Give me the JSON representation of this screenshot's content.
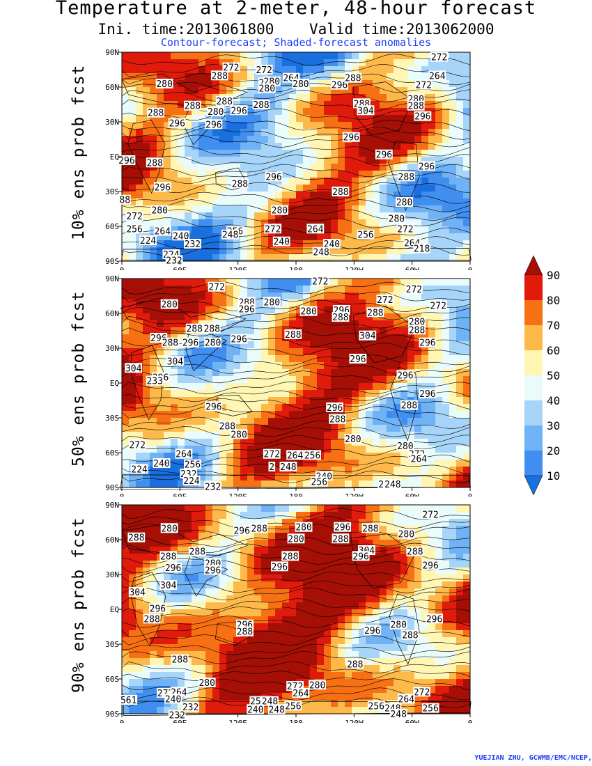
{
  "header": {
    "title": "Temperature at 2-meter, 48-hour forecast",
    "init_label": "Ini. time:2013061800",
    "valid_label": "Valid time:2013062000",
    "subtitle": "Contour-forecast; Shaded-forecast anomalies"
  },
  "axes": {
    "lat_ticks": [
      "90N",
      "60N",
      "30N",
      "EQ",
      "30S",
      "60S",
      "90S"
    ],
    "lon_ticks": [
      "0",
      "60E",
      "120E",
      "180",
      "120W",
      "60W",
      "0"
    ]
  },
  "panels": [
    {
      "label": "10% ens prob fcst",
      "contour_labels": [
        {
          "text": "272",
          "lon": -32,
          "lat": 86
        },
        {
          "text": "272",
          "lon": 147,
          "lat": 75
        },
        {
          "text": "272",
          "lon": 113,
          "lat": 77
        },
        {
          "text": "264",
          "lon": 175,
          "lat": 68
        },
        {
          "text": "288",
          "lon": 101,
          "lat": 70
        },
        {
          "text": "296",
          "lon": 150,
          "lat": 64
        },
        {
          "text": "280",
          "lon": 155,
          "lat": 65
        },
        {
          "text": "280",
          "lon": 150,
          "lat": 59
        },
        {
          "text": "280",
          "lon": 185,
          "lat": 63
        },
        {
          "text": "296",
          "lon": 225,
          "lat": 62
        },
        {
          "text": "288",
          "lon": 239,
          "lat": 68
        },
        {
          "text": "272",
          "lon": 312,
          "lat": 62
        },
        {
          "text": "264",
          "lon": 326,
          "lat": 70
        },
        {
          "text": "280",
          "lon": 44,
          "lat": 63
        },
        {
          "text": "288",
          "lon": 106,
          "lat": 48
        },
        {
          "text": "288",
          "lon": 144,
          "lat": 45
        },
        {
          "text": "288",
          "lon": 73,
          "lat": 44
        },
        {
          "text": "280",
          "lon": 97,
          "lat": 39
        },
        {
          "text": "296",
          "lon": 121,
          "lat": 40
        },
        {
          "text": "288",
          "lon": 35,
          "lat": 38
        },
        {
          "text": "296",
          "lon": 57,
          "lat": 29
        },
        {
          "text": "296",
          "lon": 95,
          "lat": 28
        },
        {
          "text": "288",
          "lon": 248,
          "lat": 46
        },
        {
          "text": "304",
          "lon": 252,
          "lat": 40
        },
        {
          "text": "280",
          "lon": 304,
          "lat": 50
        },
        {
          "text": "288",
          "lon": 304,
          "lat": 44
        },
        {
          "text": "296",
          "lon": 311,
          "lat": 35
        },
        {
          "text": "296",
          "lon": 237,
          "lat": 17
        },
        {
          "text": "296",
          "lon": 271,
          "lat": 2
        },
        {
          "text": "296",
          "lon": 5,
          "lat": -3
        },
        {
          "text": "288",
          "lon": 34,
          "lat": -5
        },
        {
          "text": "296",
          "lon": 315,
          "lat": -8
        },
        {
          "text": "288",
          "lon": 294,
          "lat": -17
        },
        {
          "text": "296",
          "lon": 157,
          "lat": -17
        },
        {
          "text": "288",
          "lon": 122,
          "lat": -23
        },
        {
          "text": "296",
          "lon": 42,
          "lat": -26
        },
        {
          "text": "288",
          "lon": 226,
          "lat": -30
        },
        {
          "text": "88",
          "lon": 3,
          "lat": -37
        },
        {
          "text": "280",
          "lon": 292,
          "lat": -39
        },
        {
          "text": "280",
          "lon": 163,
          "lat": -46
        },
        {
          "text": "280",
          "lon": 39,
          "lat": -46
        },
        {
          "text": "280",
          "lon": 284,
          "lat": -53
        },
        {
          "text": "272",
          "lon": 13,
          "lat": -51
        },
        {
          "text": "256",
          "lon": 13,
          "lat": -62
        },
        {
          "text": "264",
          "lon": 42,
          "lat": -64
        },
        {
          "text": "256",
          "lon": 117,
          "lat": -64
        },
        {
          "text": "272",
          "lon": 156,
          "lat": -62
        },
        {
          "text": "264",
          "lon": 200,
          "lat": -62
        },
        {
          "text": "248",
          "lon": 112,
          "lat": -67
        },
        {
          "text": "240",
          "lon": 61,
          "lat": -68
        },
        {
          "text": "256",
          "lon": 252,
          "lat": -67
        },
        {
          "text": "272",
          "lon": 293,
          "lat": -62
        },
        {
          "text": "224",
          "lon": 27,
          "lat": -72
        },
        {
          "text": "232",
          "lon": 73,
          "lat": -75
        },
        {
          "text": "240",
          "lon": 165,
          "lat": -73
        },
        {
          "text": "240",
          "lon": 217,
          "lat": -75
        },
        {
          "text": "264",
          "lon": 300,
          "lat": -74
        },
        {
          "text": "218",
          "lon": 310,
          "lat": -79
        },
        {
          "text": "248",
          "lon": 206,
          "lat": -82
        },
        {
          "text": "224",
          "lon": 51,
          "lat": -84
        },
        {
          "text": "232",
          "lon": 54,
          "lat": -89
        }
      ]
    },
    {
      "label": "50% ens prob fcst",
      "contour_labels": [
        {
          "text": "272",
          "lon": 205,
          "lat": 88
        },
        {
          "text": "272",
          "lon": 302,
          "lat": 81
        },
        {
          "text": "272",
          "lon": 98,
          "lat": 83
        },
        {
          "text": "272",
          "lon": 272,
          "lat": 72
        },
        {
          "text": "272",
          "lon": 327,
          "lat": 67
        },
        {
          "text": "288",
          "lon": 129,
          "lat": 70
        },
        {
          "text": "280",
          "lon": 155,
          "lat": 70
        },
        {
          "text": "296",
          "lon": 129,
          "lat": 64
        },
        {
          "text": "280",
          "lon": 49,
          "lat": 68
        },
        {
          "text": "280",
          "lon": 193,
          "lat": 62
        },
        {
          "text": "296",
          "lon": 227,
          "lat": 63
        },
        {
          "text": "288",
          "lon": 226,
          "lat": 57
        },
        {
          "text": "288",
          "lon": 262,
          "lat": 61
        },
        {
          "text": "280",
          "lon": 305,
          "lat": 53
        },
        {
          "text": "288",
          "lon": 305,
          "lat": 46
        },
        {
          "text": "288",
          "lon": 75,
          "lat": 47
        },
        {
          "text": "288",
          "lon": 93,
          "lat": 47
        },
        {
          "text": "296",
          "lon": 38,
          "lat": 39
        },
        {
          "text": "288",
          "lon": 50,
          "lat": 35
        },
        {
          "text": "296",
          "lon": 71,
          "lat": 35
        },
        {
          "text": "280",
          "lon": 94,
          "lat": 35
        },
        {
          "text": "296",
          "lon": 121,
          "lat": 38
        },
        {
          "text": "288",
          "lon": 177,
          "lat": 42
        },
        {
          "text": "304",
          "lon": 254,
          "lat": 41
        },
        {
          "text": "296",
          "lon": 316,
          "lat": 35
        },
        {
          "text": "304",
          "lon": 12,
          "lat": 13
        },
        {
          "text": "304",
          "lon": 55,
          "lat": 19
        },
        {
          "text": "296",
          "lon": 244,
          "lat": 21
        },
        {
          "text": "296",
          "lon": 40,
          "lat": 5
        },
        {
          "text": "233",
          "lon": 34,
          "lat": 2
        },
        {
          "text": "296",
          "lon": 293,
          "lat": 7
        },
        {
          "text": "296",
          "lon": 316,
          "lat": -9
        },
        {
          "text": "288",
          "lon": 297,
          "lat": -19
        },
        {
          "text": "296",
          "lon": 95,
          "lat": -20
        },
        {
          "text": "296",
          "lon": 220,
          "lat": -21
        },
        {
          "text": "288",
          "lon": 223,
          "lat": -31
        },
        {
          "text": "288",
          "lon": 109,
          "lat": -37
        },
        {
          "text": "280",
          "lon": 121,
          "lat": -44
        },
        {
          "text": "280",
          "lon": 239,
          "lat": -48
        },
        {
          "text": "280",
          "lon": 293,
          "lat": -54
        },
        {
          "text": "272",
          "lon": 16,
          "lat": -53
        },
        {
          "text": "272",
          "lon": 155,
          "lat": -61
        },
        {
          "text": "264",
          "lon": 179,
          "lat": -62
        },
        {
          "text": "256",
          "lon": 197,
          "lat": -62
        },
        {
          "text": "272",
          "lon": 305,
          "lat": -61
        },
        {
          "text": "264",
          "lon": 307,
          "lat": -65
        },
        {
          "text": "264",
          "lon": 64,
          "lat": -61
        },
        {
          "text": "240",
          "lon": 41,
          "lat": -69
        },
        {
          "text": "256",
          "lon": 73,
          "lat": -70
        },
        {
          "text": "248",
          "lon": 172,
          "lat": -72
        },
        {
          "text": "2",
          "lon": 155,
          "lat": -72
        },
        {
          "text": "224",
          "lon": 18,
          "lat": -74
        },
        {
          "text": "232",
          "lon": 69,
          "lat": -78
        },
        {
          "text": "224",
          "lon": 72,
          "lat": -84
        },
        {
          "text": "232",
          "lon": 94,
          "lat": -89
        },
        {
          "text": "240",
          "lon": 209,
          "lat": -80
        },
        {
          "text": "256",
          "lon": 204,
          "lat": -85
        },
        {
          "text": "2",
          "lon": 268,
          "lat": -87
        },
        {
          "text": "248",
          "lon": 280,
          "lat": -87
        }
      ]
    },
    {
      "label": "90% ens prob fcst",
      "contour_labels": [
        {
          "text": "272",
          "lon": 319,
          "lat": 82
        },
        {
          "text": "296",
          "lon": 124,
          "lat": 68
        },
        {
          "text": "288",
          "lon": 142,
          "lat": 70
        },
        {
          "text": "280",
          "lon": 188,
          "lat": 71
        },
        {
          "text": "296",
          "lon": 228,
          "lat": 71
        },
        {
          "text": "288",
          "lon": 257,
          "lat": 70
        },
        {
          "text": "280",
          "lon": 180,
          "lat": 61
        },
        {
          "text": "288",
          "lon": 226,
          "lat": 61
        },
        {
          "text": "280",
          "lon": 294,
          "lat": 65
        },
        {
          "text": "280",
          "lon": 49,
          "lat": 70
        },
        {
          "text": "288",
          "lon": 15,
          "lat": 62
        },
        {
          "text": "288",
          "lon": 48,
          "lat": 46
        },
        {
          "text": "288",
          "lon": 78,
          "lat": 50
        },
        {
          "text": "280",
          "lon": 94,
          "lat": 40
        },
        {
          "text": "296",
          "lon": 94,
          "lat": 34
        },
        {
          "text": "296",
          "lon": 53,
          "lat": 36
        },
        {
          "text": "288",
          "lon": 174,
          "lat": 46
        },
        {
          "text": "296",
          "lon": 163,
          "lat": 37
        },
        {
          "text": "304",
          "lon": 253,
          "lat": 51
        },
        {
          "text": "296",
          "lon": 247,
          "lat": 46
        },
        {
          "text": "288",
          "lon": 303,
          "lat": 50
        },
        {
          "text": "296",
          "lon": 319,
          "lat": 38
        },
        {
          "text": "304",
          "lon": 16,
          "lat": 15
        },
        {
          "text": "304",
          "lon": 48,
          "lat": 21
        },
        {
          "text": "296",
          "lon": 37,
          "lat": 1
        },
        {
          "text": "288",
          "lon": 31,
          "lat": -8
        },
        {
          "text": "296",
          "lon": 127,
          "lat": -13
        },
        {
          "text": "288",
          "lon": 127,
          "lat": -19
        },
        {
          "text": "296",
          "lon": 259,
          "lat": -18
        },
        {
          "text": "280",
          "lon": 286,
          "lat": -13
        },
        {
          "text": "288",
          "lon": 298,
          "lat": -22
        },
        {
          "text": "296",
          "lon": 323,
          "lat": -8
        },
        {
          "text": "288",
          "lon": 60,
          "lat": -43
        },
        {
          "text": "288",
          "lon": 241,
          "lat": -47
        },
        {
          "text": "280",
          "lon": 88,
          "lat": -63
        },
        {
          "text": "280",
          "lon": 202,
          "lat": -65
        },
        {
          "text": "272",
          "lon": 179,
          "lat": -66
        },
        {
          "text": "264",
          "lon": 185,
          "lat": -72
        },
        {
          "text": "272",
          "lon": 310,
          "lat": -71
        },
        {
          "text": "264",
          "lon": 294,
          "lat": -77
        },
        {
          "text": "272",
          "lon": 45,
          "lat": -72
        },
        {
          "text": "264",
          "lon": 59,
          "lat": -71
        },
        {
          "text": "256",
          "lon": 141,
          "lat": -79
        },
        {
          "text": "248",
          "lon": 153,
          "lat": -79
        },
        {
          "text": "256",
          "lon": 177,
          "lat": -83
        },
        {
          "text": "256",
          "lon": 263,
          "lat": -83
        },
        {
          "text": "248",
          "lon": 280,
          "lat": -85
        },
        {
          "text": "256",
          "lon": 319,
          "lat": -85
        },
        {
          "text": "561",
          "lon": 7,
          "lat": -78
        },
        {
          "text": "240",
          "lon": 53,
          "lat": -77
        },
        {
          "text": "232",
          "lon": 71,
          "lat": -84
        },
        {
          "text": "240",
          "lon": 138,
          "lat": -86
        },
        {
          "text": "248",
          "lon": 160,
          "lat": -86
        },
        {
          "text": "232",
          "lon": 57,
          "lat": -91
        },
        {
          "text": "248",
          "lon": 286,
          "lat": -90
        }
      ]
    }
  ],
  "colorbar": {
    "levels": [
      "10",
      "20",
      "30",
      "40",
      "50",
      "60",
      "70",
      "80",
      "90"
    ],
    "colors": [
      "#1a6fdf",
      "#3f8ef0",
      "#6fb2f5",
      "#a7d5fa",
      "#e9fbfb",
      "#fff6b4",
      "#feb94b",
      "#f87014",
      "#e11b0c",
      "#a50f06"
    ]
  },
  "footer": {
    "credit": "YUEJIAN ZHU, GCWMB/EMC/NCEP,"
  }
}
